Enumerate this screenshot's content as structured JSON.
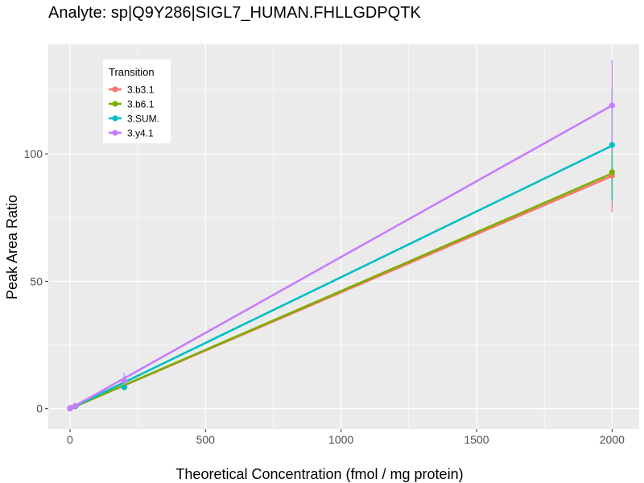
{
  "chart_data": {
    "type": "line",
    "title": "Analyte: sp|Q9Y286|SIGL7_HUMAN.FHLLGDPQTK",
    "xlabel": "Theoretical Concentration (fmol / mg protein)",
    "ylabel": "Peak Area Ratio",
    "xlim": [
      -80,
      2100
    ],
    "ylim": [
      -8,
      143
    ],
    "xticks": [
      0,
      500,
      1000,
      1500,
      2000
    ],
    "yticks": [
      0,
      50,
      100
    ],
    "grid": true,
    "legend": {
      "title": "Transition",
      "position": "top-left"
    },
    "x": [
      0,
      2,
      20,
      200,
      2000
    ],
    "series": [
      {
        "name": "3.b3.1",
        "color": "#F8766D",
        "values": [
          0.1,
          0.3,
          0.9,
          8.5,
          91.5
        ],
        "error": [
          0,
          0,
          0,
          1.2,
          14.5
        ],
        "fit": [
          0.0,
          91.3
        ]
      },
      {
        "name": "3.b6.1",
        "color": "#7CAE00",
        "values": [
          0.1,
          0.3,
          0.9,
          8.4,
          92.8
        ],
        "error": [
          0,
          0,
          0,
          1.0,
          10.0
        ],
        "fit": [
          0.0,
          92.3
        ]
      },
      {
        "name": "3.SUM.",
        "color": "#00BFC4",
        "values": [
          0.1,
          0.3,
          1.0,
          8.4,
          103.5
        ],
        "error": [
          0,
          0,
          0,
          1.0,
          22.0
        ],
        "fit": [
          0.0,
          103.2
        ]
      },
      {
        "name": "3.y4.1",
        "color": "#C77CFF",
        "values": [
          0.1,
          0.3,
          1.1,
          11.0,
          119.0
        ],
        "error": [
          0,
          0,
          0,
          3.0,
          18.0
        ],
        "fit": [
          0.0,
          119.0
        ]
      }
    ]
  }
}
